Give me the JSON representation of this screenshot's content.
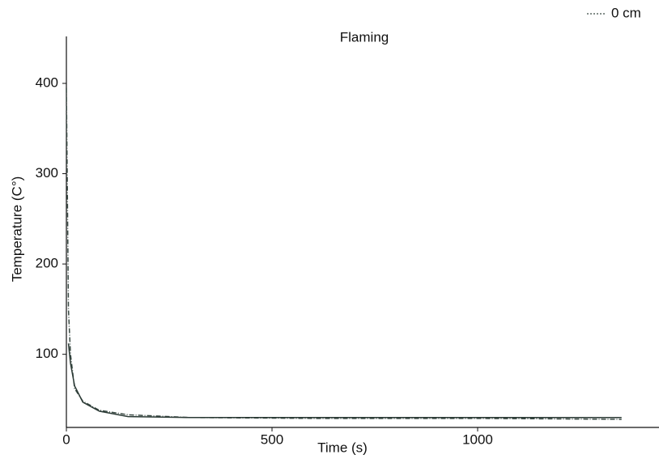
{
  "chart_data": {
    "type": "line",
    "title": "Flaming",
    "x_label": "Time (s)",
    "y_label": "Temperature (C°)",
    "xlim": [
      0,
      1441
    ],
    "ylim": [
      19,
      452
    ],
    "xticks": [
      0,
      500,
      1000
    ],
    "yticks": [
      100,
      200,
      300,
      400
    ],
    "grid": false,
    "legend": "upper right",
    "series": [
      {
        "name": "0 cm",
        "color": "#3a4a44",
        "dash": "dashdot",
        "x": [
          0,
          2,
          5,
          10,
          20,
          40,
          80,
          150,
          300,
          600,
          1000,
          1350
        ],
        "values": [
          395,
          300,
          150,
          100,
          62,
          48,
          38,
          33,
          30,
          29,
          29,
          28
        ]
      },
      {
        "color": "#2b3a35",
        "dash": "solid",
        "x": [
          5,
          10,
          20,
          40,
          80,
          150,
          300,
          1000,
          1350
        ],
        "values": [
          112,
          90,
          65,
          47,
          37,
          31,
          30,
          30,
          30
        ]
      }
    ]
  }
}
